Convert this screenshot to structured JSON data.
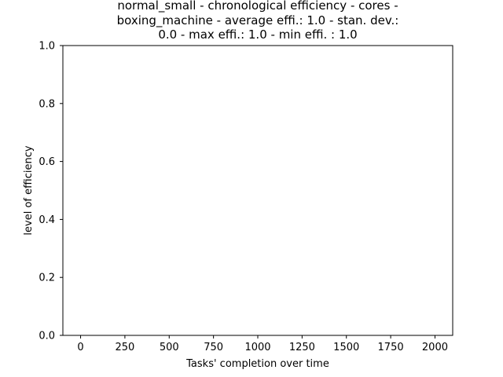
{
  "chart_data": {
    "type": "line",
    "title_lines": [
      "normal_small - chronological efficiency - cores -",
      "boxing_machine - average effi.: 1.0 - stan. dev.:",
      "0.0 - max effi.: 1.0 - min effi. : 1.0"
    ],
    "xlabel": "Tasks' completion over time",
    "ylabel": "level of efficiency",
    "xlim": [
      -100,
      2100
    ],
    "ylim": [
      0.0,
      1.0
    ],
    "x_ticks": [
      0,
      250,
      500,
      750,
      1000,
      1250,
      1500,
      1750,
      2000
    ],
    "x_tick_labels": [
      "0",
      "250",
      "500",
      "750",
      "1000",
      "1250",
      "1500",
      "1750",
      "2000"
    ],
    "y_ticks": [
      0.0,
      0.2,
      0.4,
      0.6,
      0.8,
      1.0
    ],
    "y_tick_labels": [
      "0.0",
      "0.2",
      "0.4",
      "0.6",
      "0.8",
      "1.0"
    ],
    "grid": false,
    "series": []
  }
}
